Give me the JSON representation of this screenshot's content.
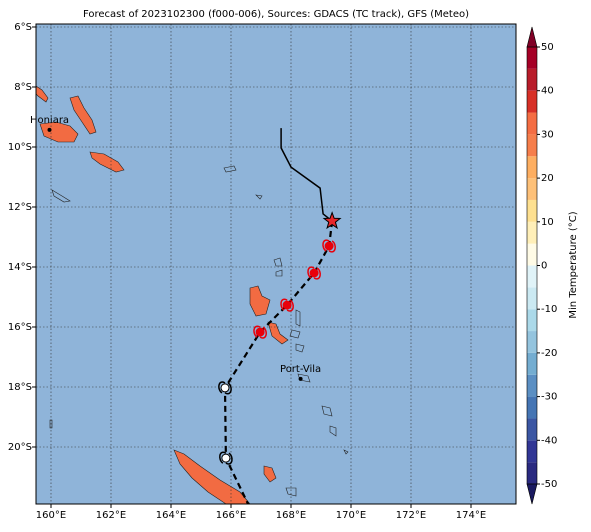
{
  "title": "Forecast of 2023102300 (f000-006), Sources: GDACS (TC track), GFS (Meteo)",
  "map": {
    "lonlim": [
      159.5,
      175.5
    ],
    "latlim": [
      -5.9,
      -21.9
    ],
    "xticks": [
      {
        "value": 160,
        "label": "160°E"
      },
      {
        "value": 162,
        "label": "162°E"
      },
      {
        "value": 164,
        "label": "164°E"
      },
      {
        "value": 166,
        "label": "166°E"
      },
      {
        "value": 168,
        "label": "168°E"
      },
      {
        "value": 170,
        "label": "170°E"
      },
      {
        "value": 172,
        "label": "172°E"
      },
      {
        "value": 174,
        "label": "174°E"
      }
    ],
    "yticks": [
      {
        "value": -6,
        "label": "6°S"
      },
      {
        "value": -8,
        "label": "8°S"
      },
      {
        "value": -10,
        "label": "10°S"
      },
      {
        "value": -12,
        "label": "12°S"
      },
      {
        "value": -14,
        "label": "14°S"
      },
      {
        "value": -16,
        "label": "16°S"
      },
      {
        "value": -18,
        "label": "18°S"
      },
      {
        "value": -20,
        "label": "20°S"
      }
    ],
    "ocean_color": "#8fb4d9",
    "grid": true
  },
  "cities": [
    {
      "name": "Honiara",
      "lon": 159.95,
      "lat": -9.43
    },
    {
      "name": "Port-Vila",
      "lon": 168.32,
      "lat": -17.73
    }
  ],
  "track": {
    "observed": {
      "lon": [
        167.67,
        167.67,
        168.0,
        168.97,
        169.07,
        169.37
      ],
      "lat": [
        -9.37,
        -10.03,
        -10.67,
        -11.37,
        -12.23,
        -12.47
      ],
      "color": "#000000"
    },
    "forecast": {
      "lon": [
        169.37,
        169.27,
        168.77,
        167.87,
        166.97,
        165.8,
        165.83,
        166.57
      ],
      "lat": [
        -12.47,
        -13.3,
        -14.2,
        -15.27,
        -16.17,
        -18.03,
        -20.37,
        -21.9
      ],
      "color": "#000000"
    },
    "current": {
      "lon": 169.37,
      "lat": -12.47,
      "color": "#e8262a"
    },
    "symbols": [
      {
        "lon": 169.27,
        "lat": -13.3,
        "color": "#e8000b"
      },
      {
        "lon": 168.77,
        "lat": -14.2,
        "color": "#e8000b"
      },
      {
        "lon": 167.87,
        "lat": -15.27,
        "color": "#e8000b"
      },
      {
        "lon": 166.97,
        "lat": -16.17,
        "color": "#e8000b"
      },
      {
        "lon": 165.8,
        "lat": -18.03,
        "color": "#ffffff"
      },
      {
        "lon": 165.83,
        "lat": -20.37,
        "color": "#ffffff"
      }
    ]
  },
  "colorbar": {
    "label": "Min Temperature (°C)",
    "levels": [
      -50,
      -45,
      -40,
      -35,
      -30,
      -25,
      -20,
      -15,
      -10,
      -5,
      0,
      5,
      10,
      15,
      20,
      25,
      30,
      35,
      40,
      45,
      50
    ],
    "colors": [
      "#2a2a80",
      "#313695",
      "#3b56a3",
      "#4575b4",
      "#5b8fc3",
      "#74add1",
      "#94c4de",
      "#abd9e9",
      "#cbe9f2",
      "#e0f3f8",
      "#fffbe6",
      "#ffefb8",
      "#fee090",
      "#fdc078",
      "#fdae61",
      "#f67e4b",
      "#f46d43",
      "#d73027",
      "#b81c2a",
      "#a50026"
    ],
    "under": "#1a1a60",
    "over": "#800026",
    "ticks": [
      -50,
      -40,
      -30,
      -20,
      -10,
      0,
      10,
      20,
      30,
      40,
      50
    ]
  }
}
